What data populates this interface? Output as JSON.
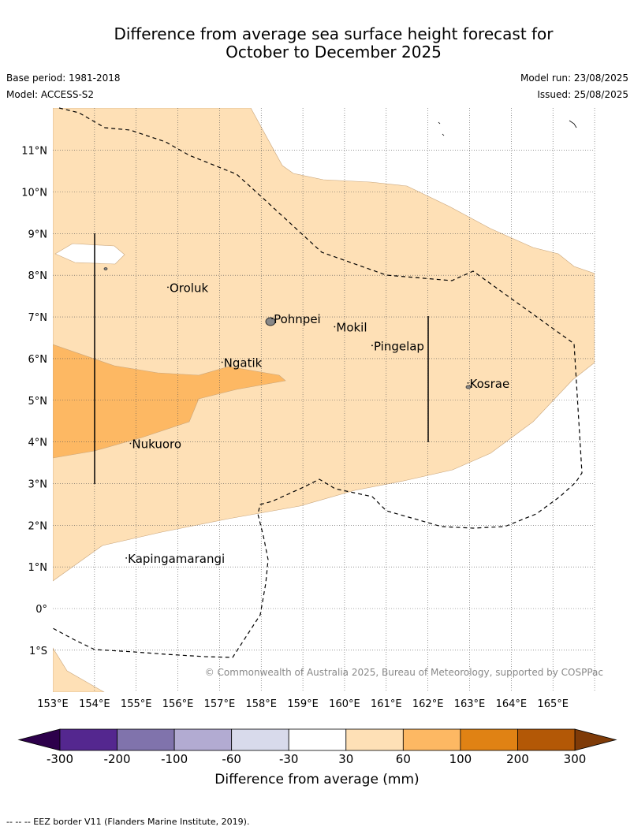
{
  "title_line1": "Difference from average sea surface height forecast for",
  "title_line2": "October to December 2025",
  "base_period": "Base period: 1981-2018",
  "model": "Model: ACCESS-S2",
  "model_run": "Model run: 23/08/2025",
  "issued": "Issued: 25/08/2025",
  "copyright": "© Commonwealth of Australia 2025, Bureau of Meteorology, supported by COSPPac",
  "lat_ticks": [
    "11°N",
    "10°N",
    "9°N",
    "8°N",
    "7°N",
    "6°N",
    "5°N",
    "4°N",
    "3°N",
    "2°N",
    "1°N",
    "0°",
    "1°S"
  ],
  "lon_ticks": [
    "153°E",
    "154°E",
    "155°E",
    "156°E",
    "157°E",
    "158°E",
    "159°E",
    "160°E",
    "161°E",
    "162°E",
    "163°E",
    "164°E",
    "165°E"
  ],
  "places": [
    {
      "name": "Oroluk",
      "lon": 155.8,
      "lat": 7.6
    },
    {
      "name": "Pohnpei",
      "lon": 158.3,
      "lat": 6.85
    },
    {
      "name": "Mokil",
      "lon": 159.8,
      "lat": 6.65
    },
    {
      "name": "Pingelap",
      "lon": 160.7,
      "lat": 6.2
    },
    {
      "name": "Ngatik",
      "lon": 157.1,
      "lat": 5.8
    },
    {
      "name": "Kosrae",
      "lon": 163.0,
      "lat": 5.3
    },
    {
      "name": "Nukuoro",
      "lon": 154.9,
      "lat": 3.85
    },
    {
      "name": "Kapingamarangi",
      "lon": 154.8,
      "lat": 1.1
    }
  ],
  "colorbar": {
    "title": "Difference from average (mm)",
    "ticks": [
      "-300",
      "-200",
      "-100",
      "-60",
      "-30",
      "30",
      "60",
      "100",
      "200",
      "300"
    ],
    "colors": [
      "#54278f",
      "#8073ac",
      "#b2abd2",
      "#d8daeb",
      "#ffffff",
      "#fee0b6",
      "#fdb863",
      "#e08214",
      "#b35806"
    ],
    "under_color": "#2d004b",
    "over_color": "#7f3b08"
  },
  "footnote": "-- -- -- EEZ border V11 (Flanders Marine Institute, 2019)."
}
